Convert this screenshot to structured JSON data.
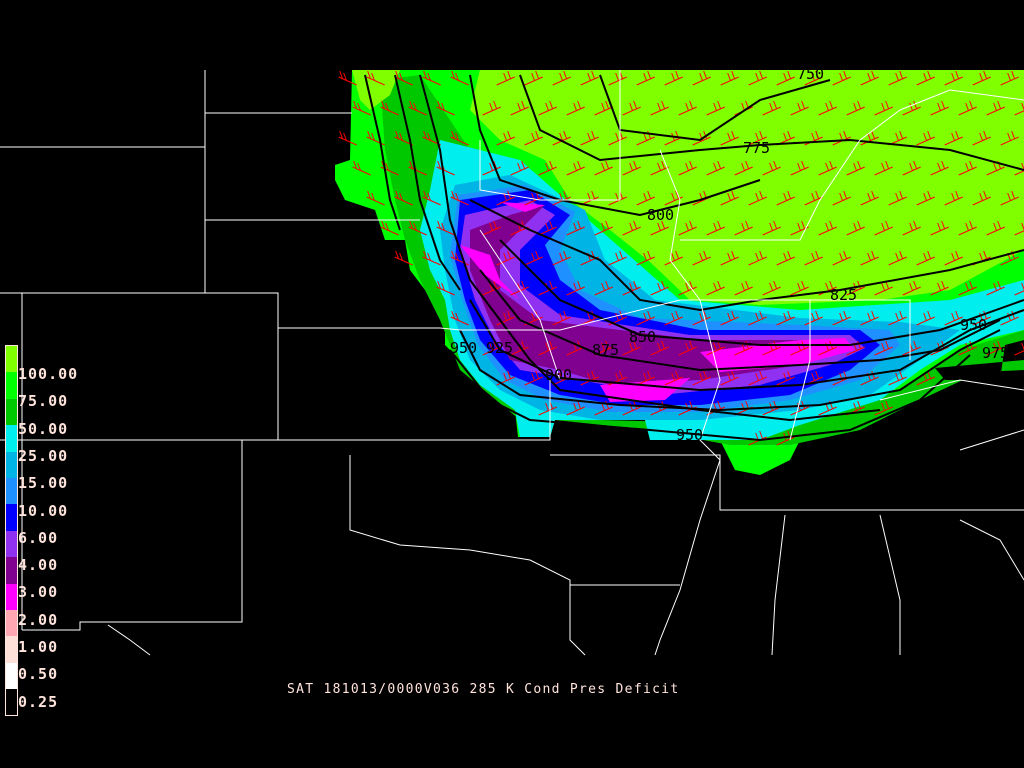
{
  "caption": "SAT 181013/0000V036 285 K Cond Pres Deficit",
  "legend": {
    "colors": [
      "#80ff00",
      "#00ff00",
      "#00c800",
      "#00eeee",
      "#00b4e6",
      "#1e90ff",
      "#0000ff",
      "#9030f0",
      "#800090",
      "#ff00ff",
      "#ffa8b4",
      "#ffe0d8",
      "#ffffff",
      "#000000"
    ],
    "labels": [
      "100.00",
      "75.00",
      "50.00",
      "25.00",
      "15.00",
      "10.00",
      "6.00",
      "4.00",
      "3.00",
      "2.00",
      "1.00",
      "0.50",
      "0.25"
    ]
  },
  "contour_labels": [
    "750",
    "775",
    "800",
    "825",
    "850",
    "875",
    "900",
    "950",
    "925",
    "950",
    "975",
    "950"
  ],
  "colors": {
    "wind_barbs": "#ff0000",
    "contours": "#000000",
    "borders": "#ffffff"
  }
}
